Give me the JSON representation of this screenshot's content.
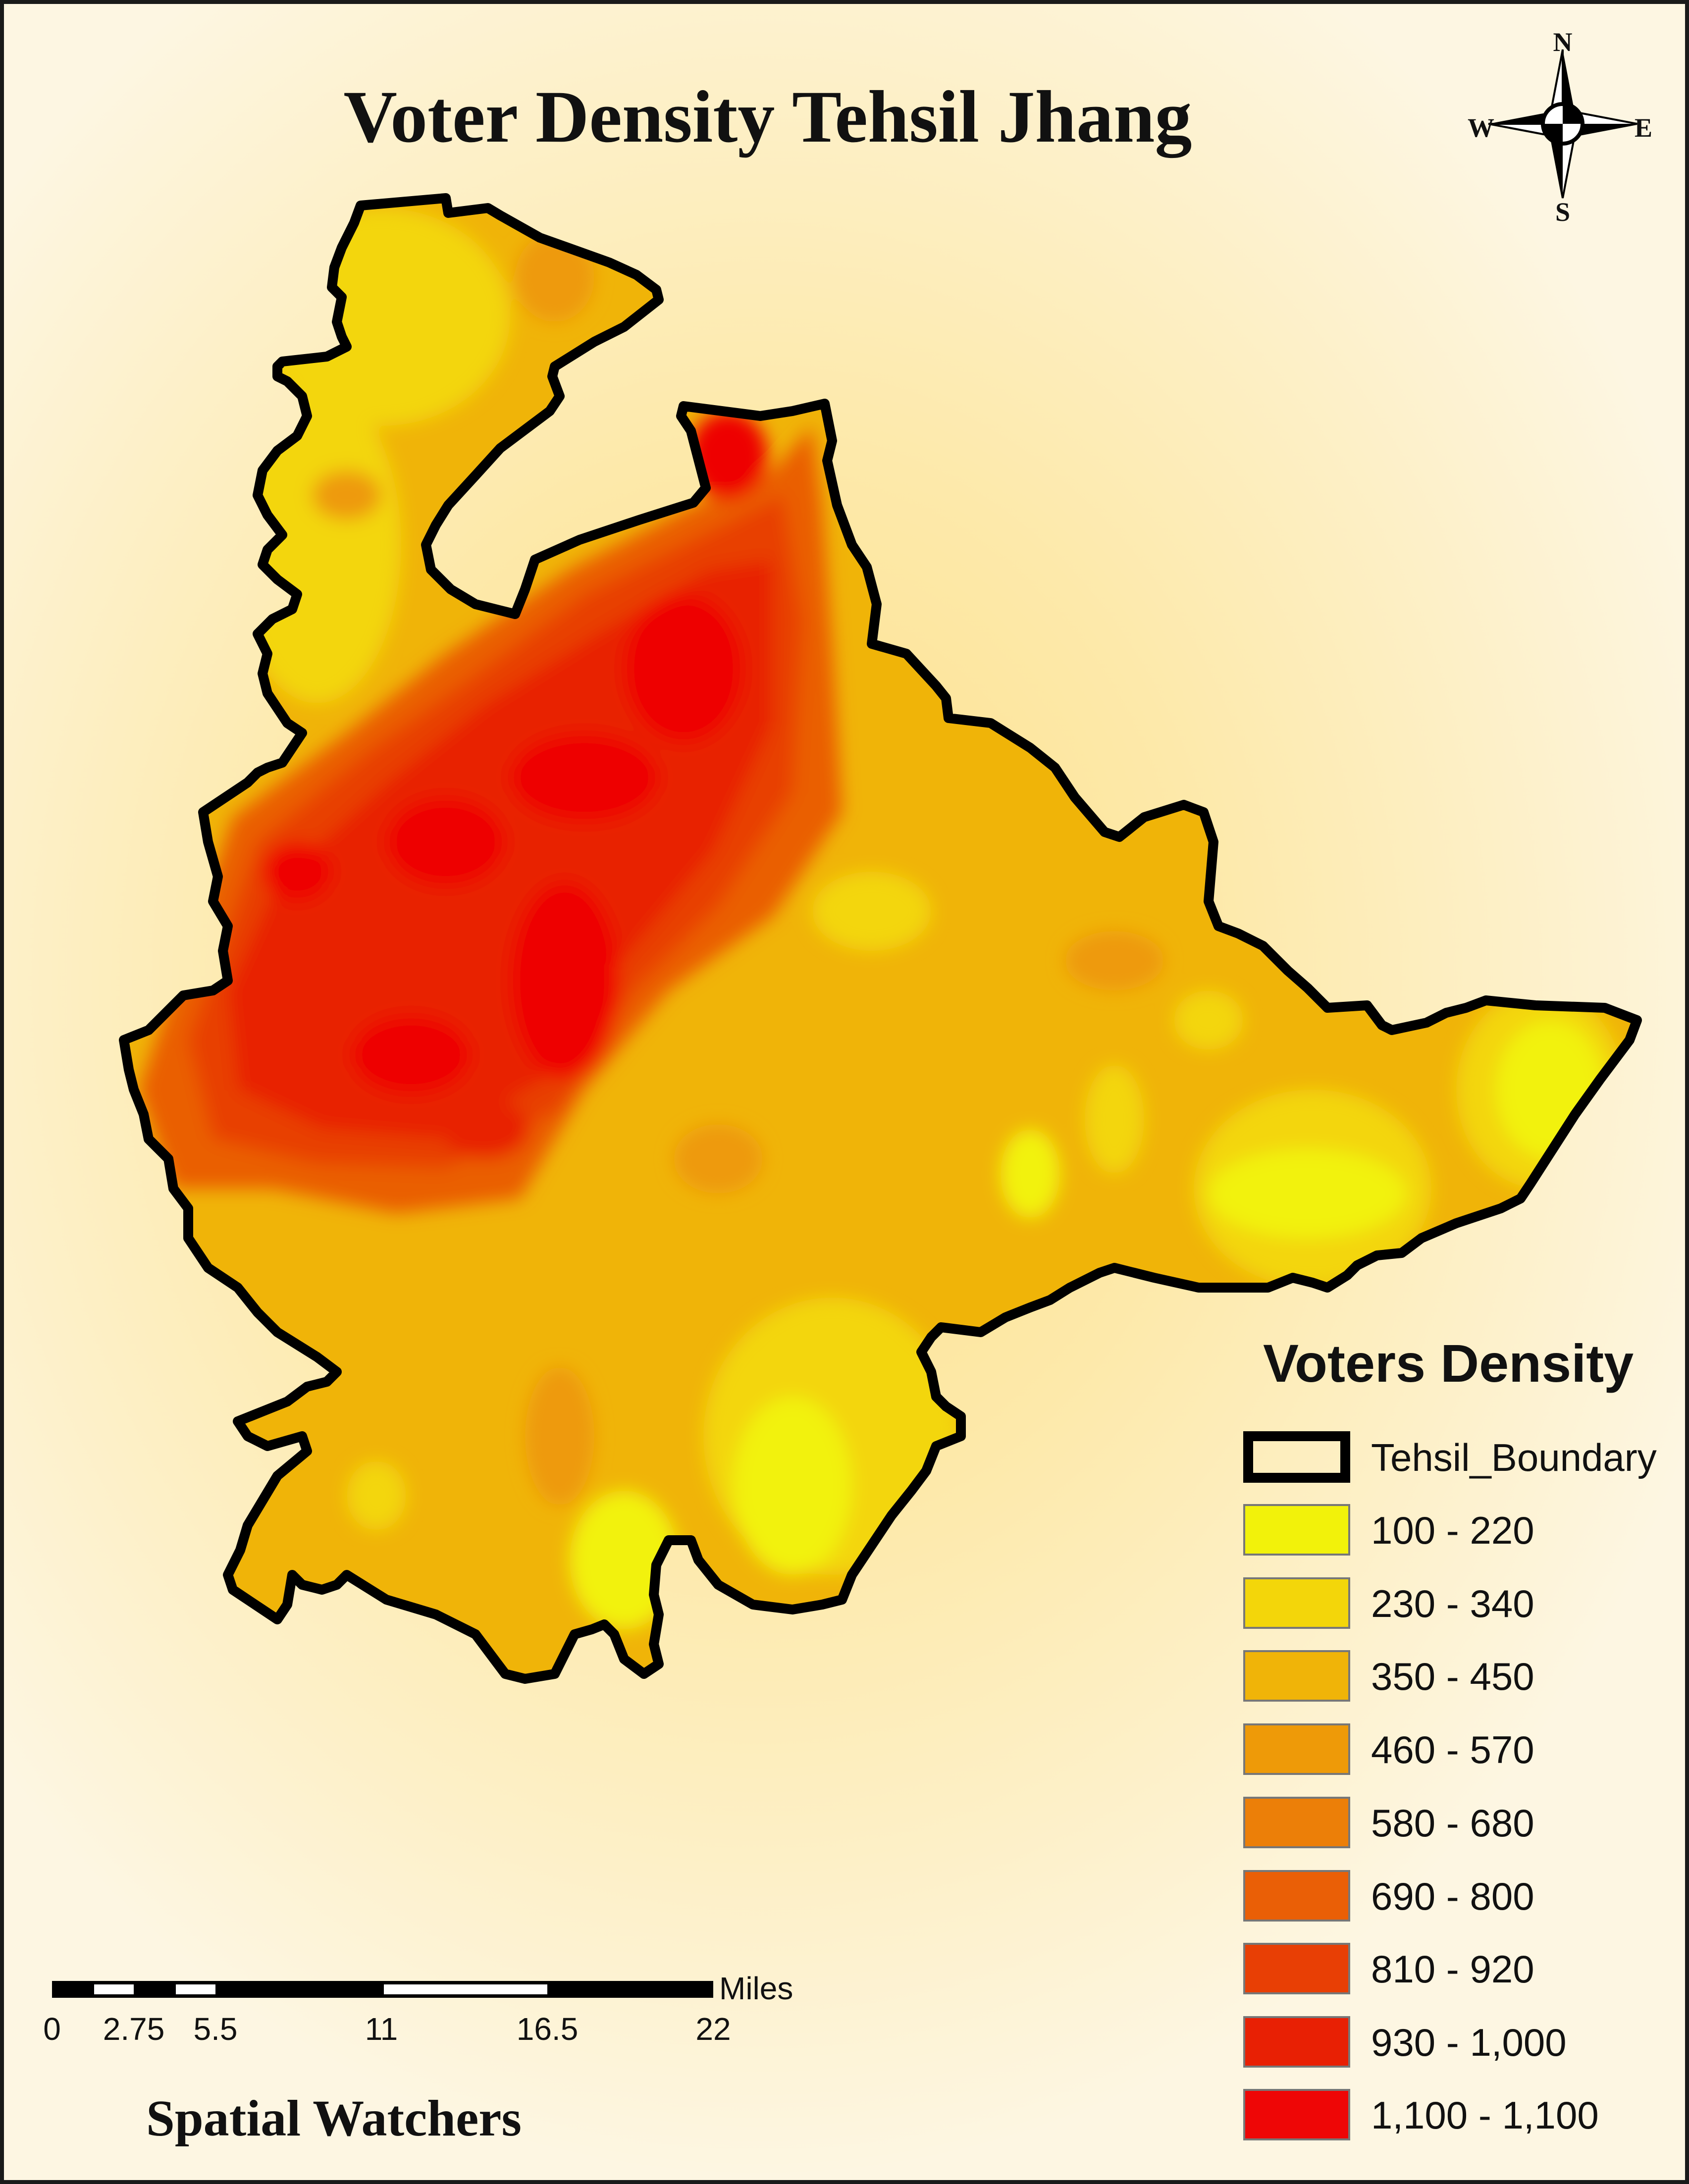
{
  "map": {
    "title": "Voter Density Tehsil Jhang",
    "credit": "Spatial Watchers"
  },
  "legend": {
    "title": "Voters Density",
    "boundary_label": "Tehsil_Boundary",
    "classes": [
      {
        "label": "100 - 220",
        "color": "#f2f20a"
      },
      {
        "label": "230 - 340",
        "color": "#f3d60a"
      },
      {
        "label": "350 - 450",
        "color": "#f0b408"
      },
      {
        "label": "460 - 570",
        "color": "#ee9a08"
      },
      {
        "label": "580 - 680",
        "color": "#ec7f08"
      },
      {
        "label": "690 - 800",
        "color": "#ea5f06"
      },
      {
        "label": "810 - 920",
        "color": "#e83f05"
      },
      {
        "label": "930 - 1,000",
        "color": "#e82004"
      },
      {
        "label": "1,100 - 1,100",
        "color": "#ee0606"
      }
    ]
  },
  "scale_bar": {
    "unit": "Miles",
    "ticks": [
      "0",
      "2.75",
      "5.5",
      "11",
      "16.5",
      "22"
    ]
  },
  "north_arrow": {
    "n": "N",
    "s": "S",
    "e": "E",
    "w": "W"
  }
}
